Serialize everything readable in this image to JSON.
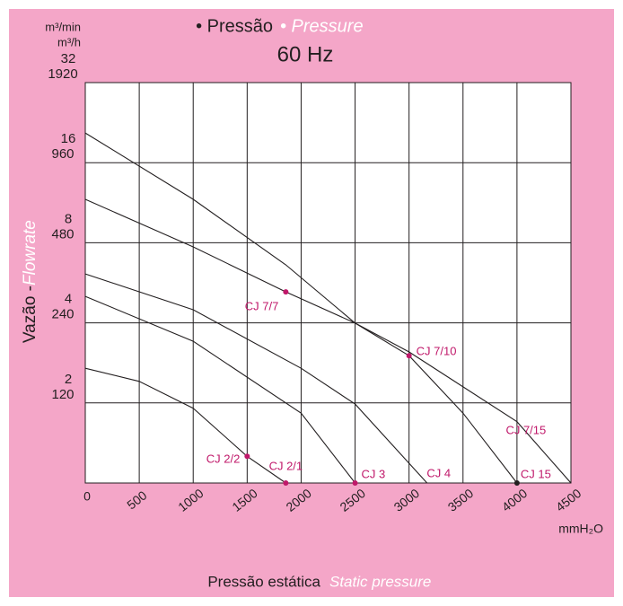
{
  "chart_data": {
    "type": "line",
    "title_1": "• Pressão",
    "title_2": "• Pressure",
    "subtitle": "60 Hz",
    "y_unit_1": "m³/min",
    "y_unit_2": "m³/h",
    "y_label_1": "Vazão - ",
    "y_label_2": "Flowrate",
    "x_label_1": "Pressão estática",
    "x_label_2": "Static pressure",
    "x_unit": "mmH₂O",
    "xlim": [
      0,
      4500
    ],
    "xticks": [
      0,
      500,
      1000,
      1500,
      2000,
      2500,
      3000,
      3500,
      4000,
      4500
    ],
    "ylim": [
      1,
      32
    ],
    "yticks": [
      2,
      4,
      8,
      16,
      32
    ],
    "y2lim": [
      60,
      1920
    ],
    "y2ticks": [
      120,
      240,
      480,
      960,
      1920
    ],
    "log_y": true,
    "grid": true,
    "line_color": "#231f20",
    "label_color": "#c0186a",
    "series": [
      {
        "x": [
          0,
          1000,
          1858,
          2500,
          3000,
          3500,
          4000
        ],
        "values": [
          20.7,
          11.65,
          6.61,
          3.99,
          3.01,
          1.83,
          1
        ]
      },
      {
        "x": [
          0,
          1000,
          1858,
          2500,
          3000,
          4000,
          4500
        ],
        "values": [
          11.65,
          7.72,
          5.23,
          3.99,
          3.11,
          1.7,
          1
        ]
      },
      {
        "x": [
          0,
          1000,
          2000,
          2500,
          3167
        ],
        "values": [
          6.11,
          4.48,
          2.7,
          1.98,
          1
        ]
      },
      {
        "x": [
          0,
          1000,
          2000,
          2500
        ],
        "values": [
          5.03,
          3.41,
          1.83,
          1
        ]
      },
      {
        "x": [
          0,
          500,
          1000,
          1500,
          1858
        ],
        "values": [
          2.7,
          2.41,
          1.91,
          1.26,
          1
        ]
      }
    ],
    "annotations": [
      {
        "text": "CJ 7/7",
        "x": 1858,
        "y": 5.23,
        "marker": true
      },
      {
        "text": "CJ 7/10",
        "x": 3000,
        "y": 3.01,
        "marker": true
      },
      {
        "text": "CJ 2/2",
        "x": 1500,
        "y": 1.26,
        "marker": true
      },
      {
        "text": "CJ 2/1",
        "x": 1858,
        "y": 1,
        "marker": true
      },
      {
        "text": "CJ 3",
        "x": 2500,
        "y": 1,
        "marker": true
      },
      {
        "text": "CJ 15",
        "x": 4000,
        "y": 1,
        "marker": true,
        "marker_color": "#231f20"
      },
      {
        "text": "CJ 4",
        "x": 3275,
        "y": 1.08,
        "marker": false
      },
      {
        "text": "CJ 7/15",
        "x": 4083,
        "y": 1.57,
        "marker": false
      }
    ]
  }
}
